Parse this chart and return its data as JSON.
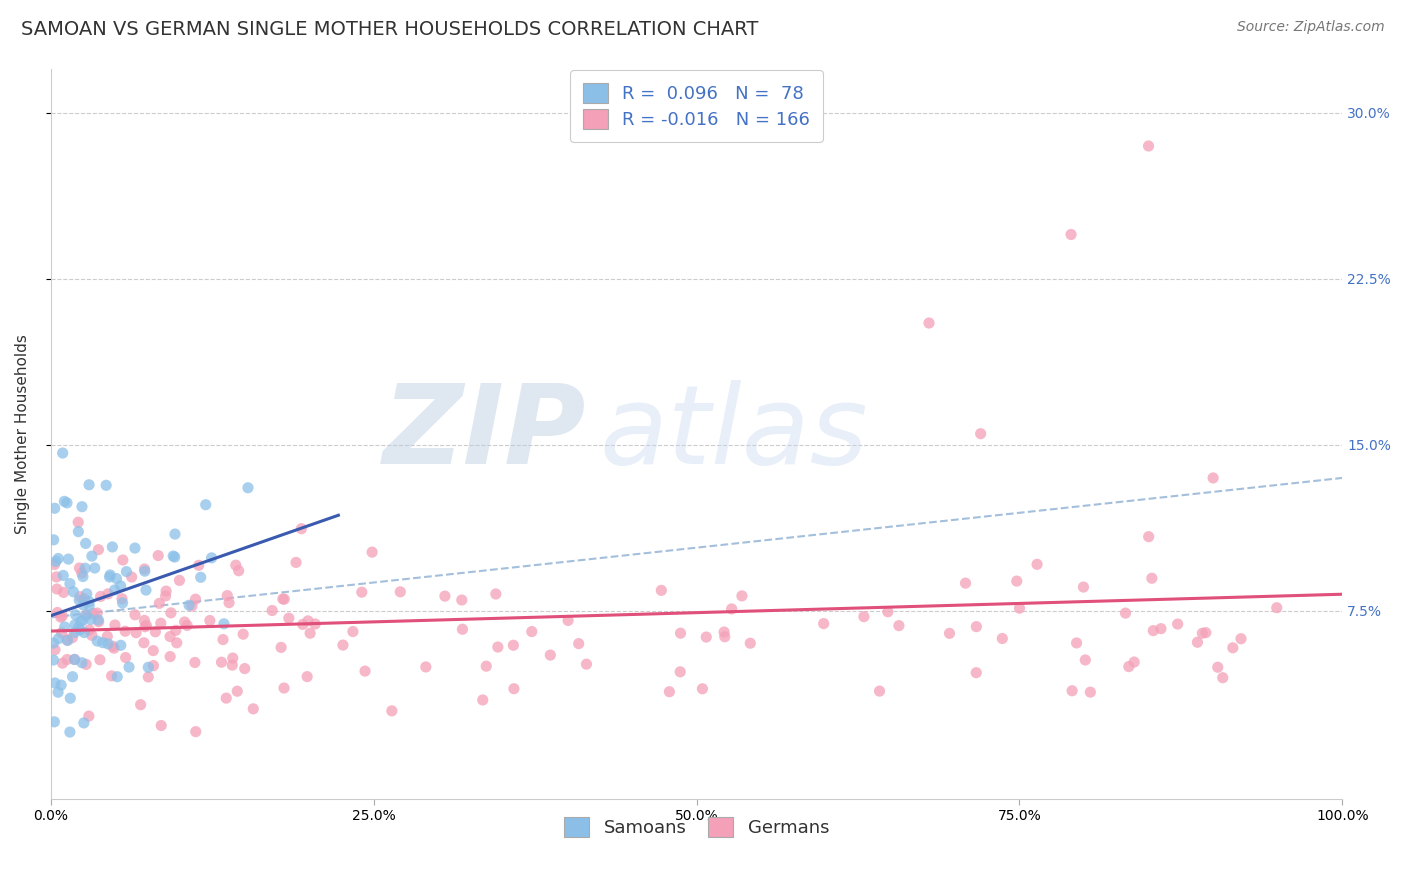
{
  "title": "SAMOAN VS GERMAN SINGLE MOTHER HOUSEHOLDS CORRELATION CHART",
  "source": "Source: ZipAtlas.com",
  "xlabel": "",
  "ylabel": "Single Mother Households",
  "xlim": [
    0.0,
    1.0
  ],
  "ylim": [
    -0.01,
    0.32
  ],
  "xticks": [
    0.0,
    0.25,
    0.5,
    0.75,
    1.0
  ],
  "xtick_labels": [
    "0.0%",
    "25.0%",
    "50.0%",
    "75.0%",
    "100.0%"
  ],
  "ytick_labels_right": [
    "7.5%",
    "15.0%",
    "22.5%",
    "30.0%"
  ],
  "yticks_right": [
    0.075,
    0.15,
    0.225,
    0.3
  ],
  "samoan_color": "#8bbfe8",
  "german_color": "#f4a0b8",
  "samoan_R": 0.096,
  "samoan_N": 78,
  "german_R": -0.016,
  "german_N": 166,
  "trend_line_samoan_color": "#3a5ab0",
  "trend_line_german_color": "#e0507a",
  "trend_line_dashed_color": "#9ab8d8",
  "watermark_zip": "ZIP",
  "watermark_atlas": "atlas",
  "watermark_color_zip": "#b8cce8",
  "watermark_color_atlas": "#c8d8f0",
  "background_color": "#ffffff",
  "title_fontsize": 14,
  "source_fontsize": 10,
  "legend_fontsize": 13,
  "axis_label_fontsize": 11,
  "tick_fontsize": 10,
  "seed": 7
}
